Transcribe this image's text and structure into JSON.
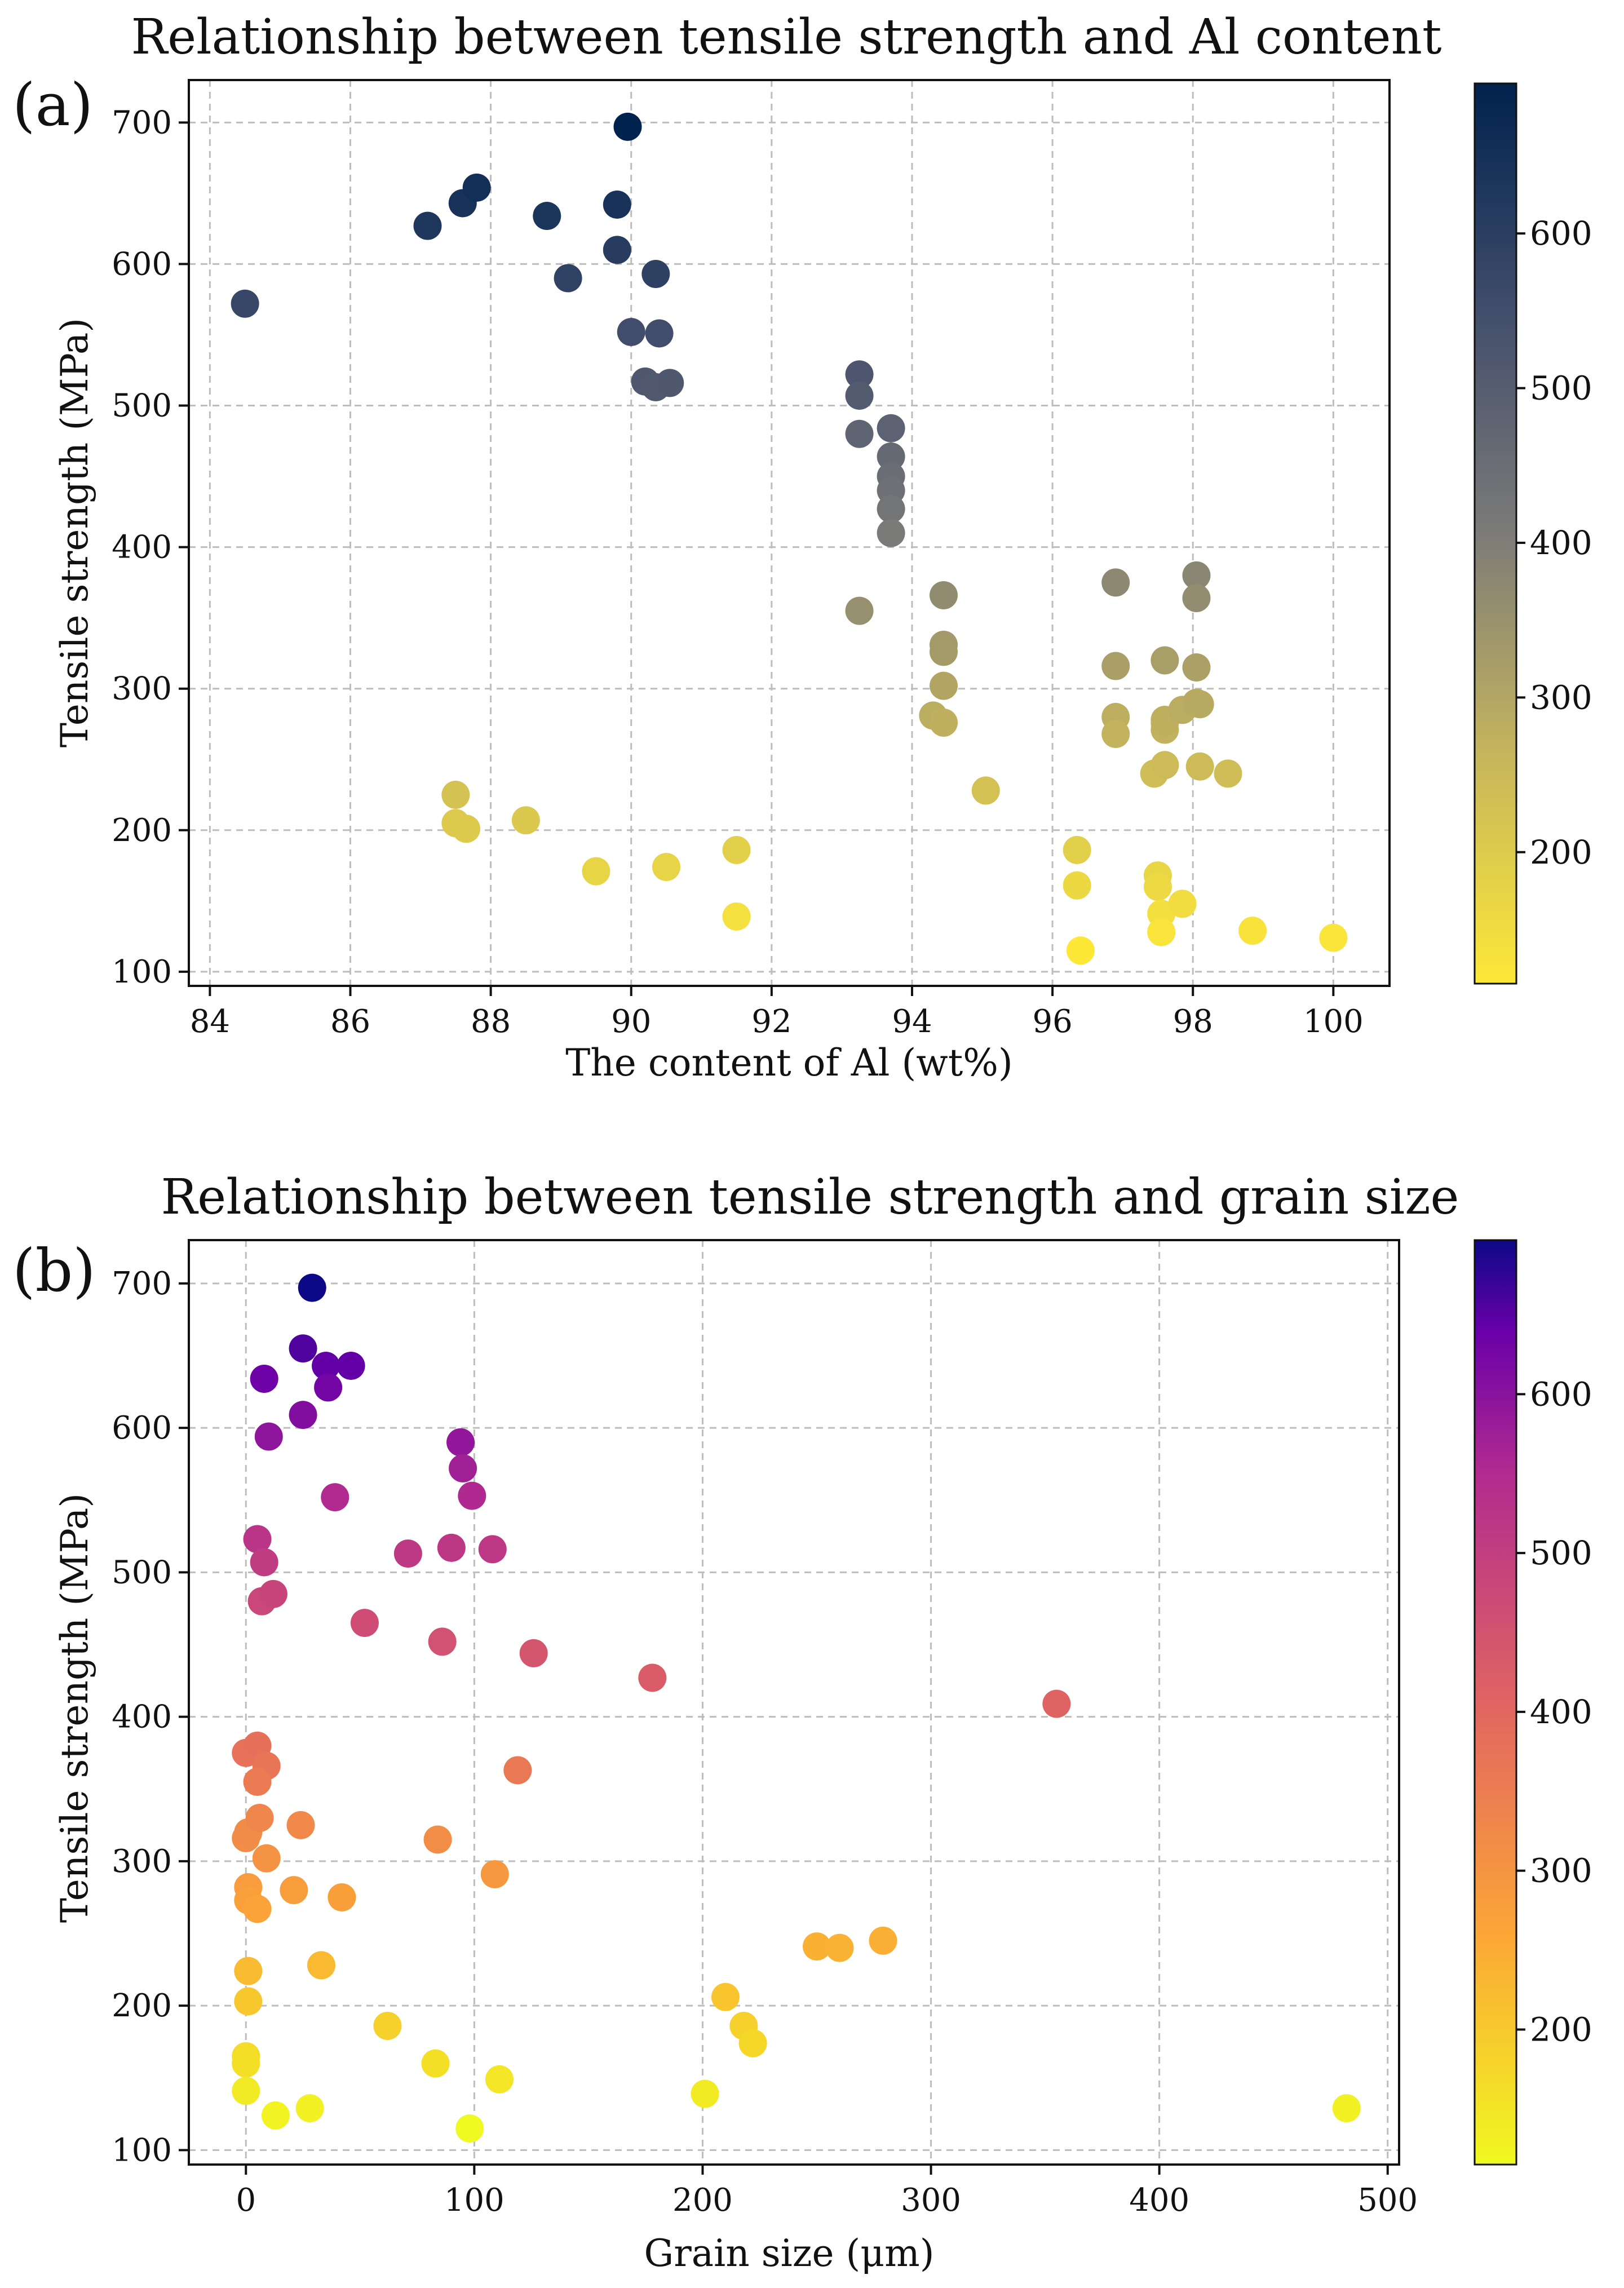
{
  "chart_data": [
    {
      "id": "a",
      "type": "scatter",
      "panel_label": "(a)",
      "title": "Relationship between tensile strength and Al content",
      "xlabel": "The content of Al (wt%)",
      "ylabel": "Tensile strength (MPa)",
      "xlim": [
        83.7,
        100.8
      ],
      "ylim": [
        90,
        730
      ],
      "xticks": [
        84,
        86,
        88,
        90,
        92,
        94,
        96,
        98,
        100
      ],
      "yticks": [
        100,
        200,
        300,
        400,
        500,
        600,
        700
      ],
      "grid": true,
      "colormap": "cividis_r",
      "colorbar": {
        "range": [
          115,
          697
        ],
        "ticks": [
          200,
          300,
          400,
          500,
          600
        ]
      },
      "x": [
        84.5,
        87.1,
        87.6,
        87.8,
        88.8,
        89.1,
        89.8,
        89.8,
        89.95,
        90.0,
        90.2,
        90.35,
        90.35,
        90.4,
        90.55,
        87.5,
        87.5,
        87.65,
        88.5,
        89.5,
        90.5,
        91.5,
        91.5,
        93.25,
        93.25,
        93.25,
        93.25,
        93.7,
        93.7,
        93.7,
        93.7,
        93.7,
        93.7,
        94.3,
        94.45,
        94.45,
        94.45,
        94.45,
        94.45,
        95.05,
        96.35,
        96.35,
        96.4,
        96.9,
        96.9,
        96.9,
        96.9,
        97.45,
        97.5,
        97.5,
        97.55,
        97.55,
        97.6,
        97.6,
        97.6,
        97.6,
        97.6,
        97.85,
        97.85,
        98.05,
        98.05,
        98.05,
        98.05,
        98.1,
        98.1,
        98.5,
        98.85,
        100.0
      ],
      "y": [
        572,
        627,
        643,
        654,
        634,
        590,
        642,
        610,
        697,
        552,
        517,
        513,
        593,
        551,
        516,
        225,
        205,
        201,
        207,
        171,
        174,
        186,
        139,
        522,
        507,
        480,
        355,
        484,
        464,
        450,
        440,
        427,
        410,
        281,
        276,
        366,
        331,
        326,
        302,
        228,
        186,
        161,
        115,
        375,
        316,
        280,
        268,
        240,
        168,
        160,
        141,
        128,
        320,
        278,
        271,
        246,
        276,
        285,
        148,
        380,
        364,
        315,
        290,
        289,
        245,
        240,
        129,
        124
      ]
    },
    {
      "id": "b",
      "type": "scatter",
      "panel_label": "(b)",
      "title": "Relationship between tensile strength and grain size",
      "xlabel": "Grain size (μm)",
      "ylabel": "Tensile strength (MPa)",
      "xlim": [
        -25,
        505
      ],
      "ylim": [
        90,
        730
      ],
      "xticks": [
        0,
        100,
        200,
        300,
        400,
        500
      ],
      "yticks": [
        100,
        200,
        300,
        400,
        500,
        600,
        700
      ],
      "grid": true,
      "colormap": "plasma_r",
      "colorbar": {
        "range": [
          115,
          697
        ],
        "ticks": [
          200,
          300,
          400,
          500,
          600
        ]
      },
      "x": [
        29,
        25,
        35,
        46,
        36,
        25,
        8,
        10,
        39,
        94,
        95,
        99,
        5,
        8,
        7,
        12,
        71,
        90,
        108,
        52,
        86,
        126,
        178,
        355,
        0,
        5,
        9,
        5,
        119,
        0,
        1,
        6,
        24,
        84,
        1,
        1,
        9,
        21,
        42,
        109,
        5,
        1,
        1,
        33,
        62,
        210,
        218,
        222,
        250,
        260,
        279,
        0,
        0,
        0,
        13,
        28,
        83,
        111,
        201,
        98,
        482
      ],
      "y": [
        697,
        655,
        643,
        643,
        628,
        609,
        634,
        594,
        552,
        590,
        572,
        553,
        523,
        507,
        480,
        485,
        513,
        517,
        516,
        465,
        452,
        444,
        427,
        409,
        375,
        380,
        366,
        355,
        363,
        316,
        320,
        330,
        325,
        315,
        282,
        273,
        302,
        280,
        275,
        291,
        267,
        224,
        203,
        228,
        186,
        206,
        186,
        174,
        241,
        240,
        245,
        165,
        160,
        141,
        124,
        129,
        160,
        149,
        139,
        115,
        129
      ]
    }
  ]
}
